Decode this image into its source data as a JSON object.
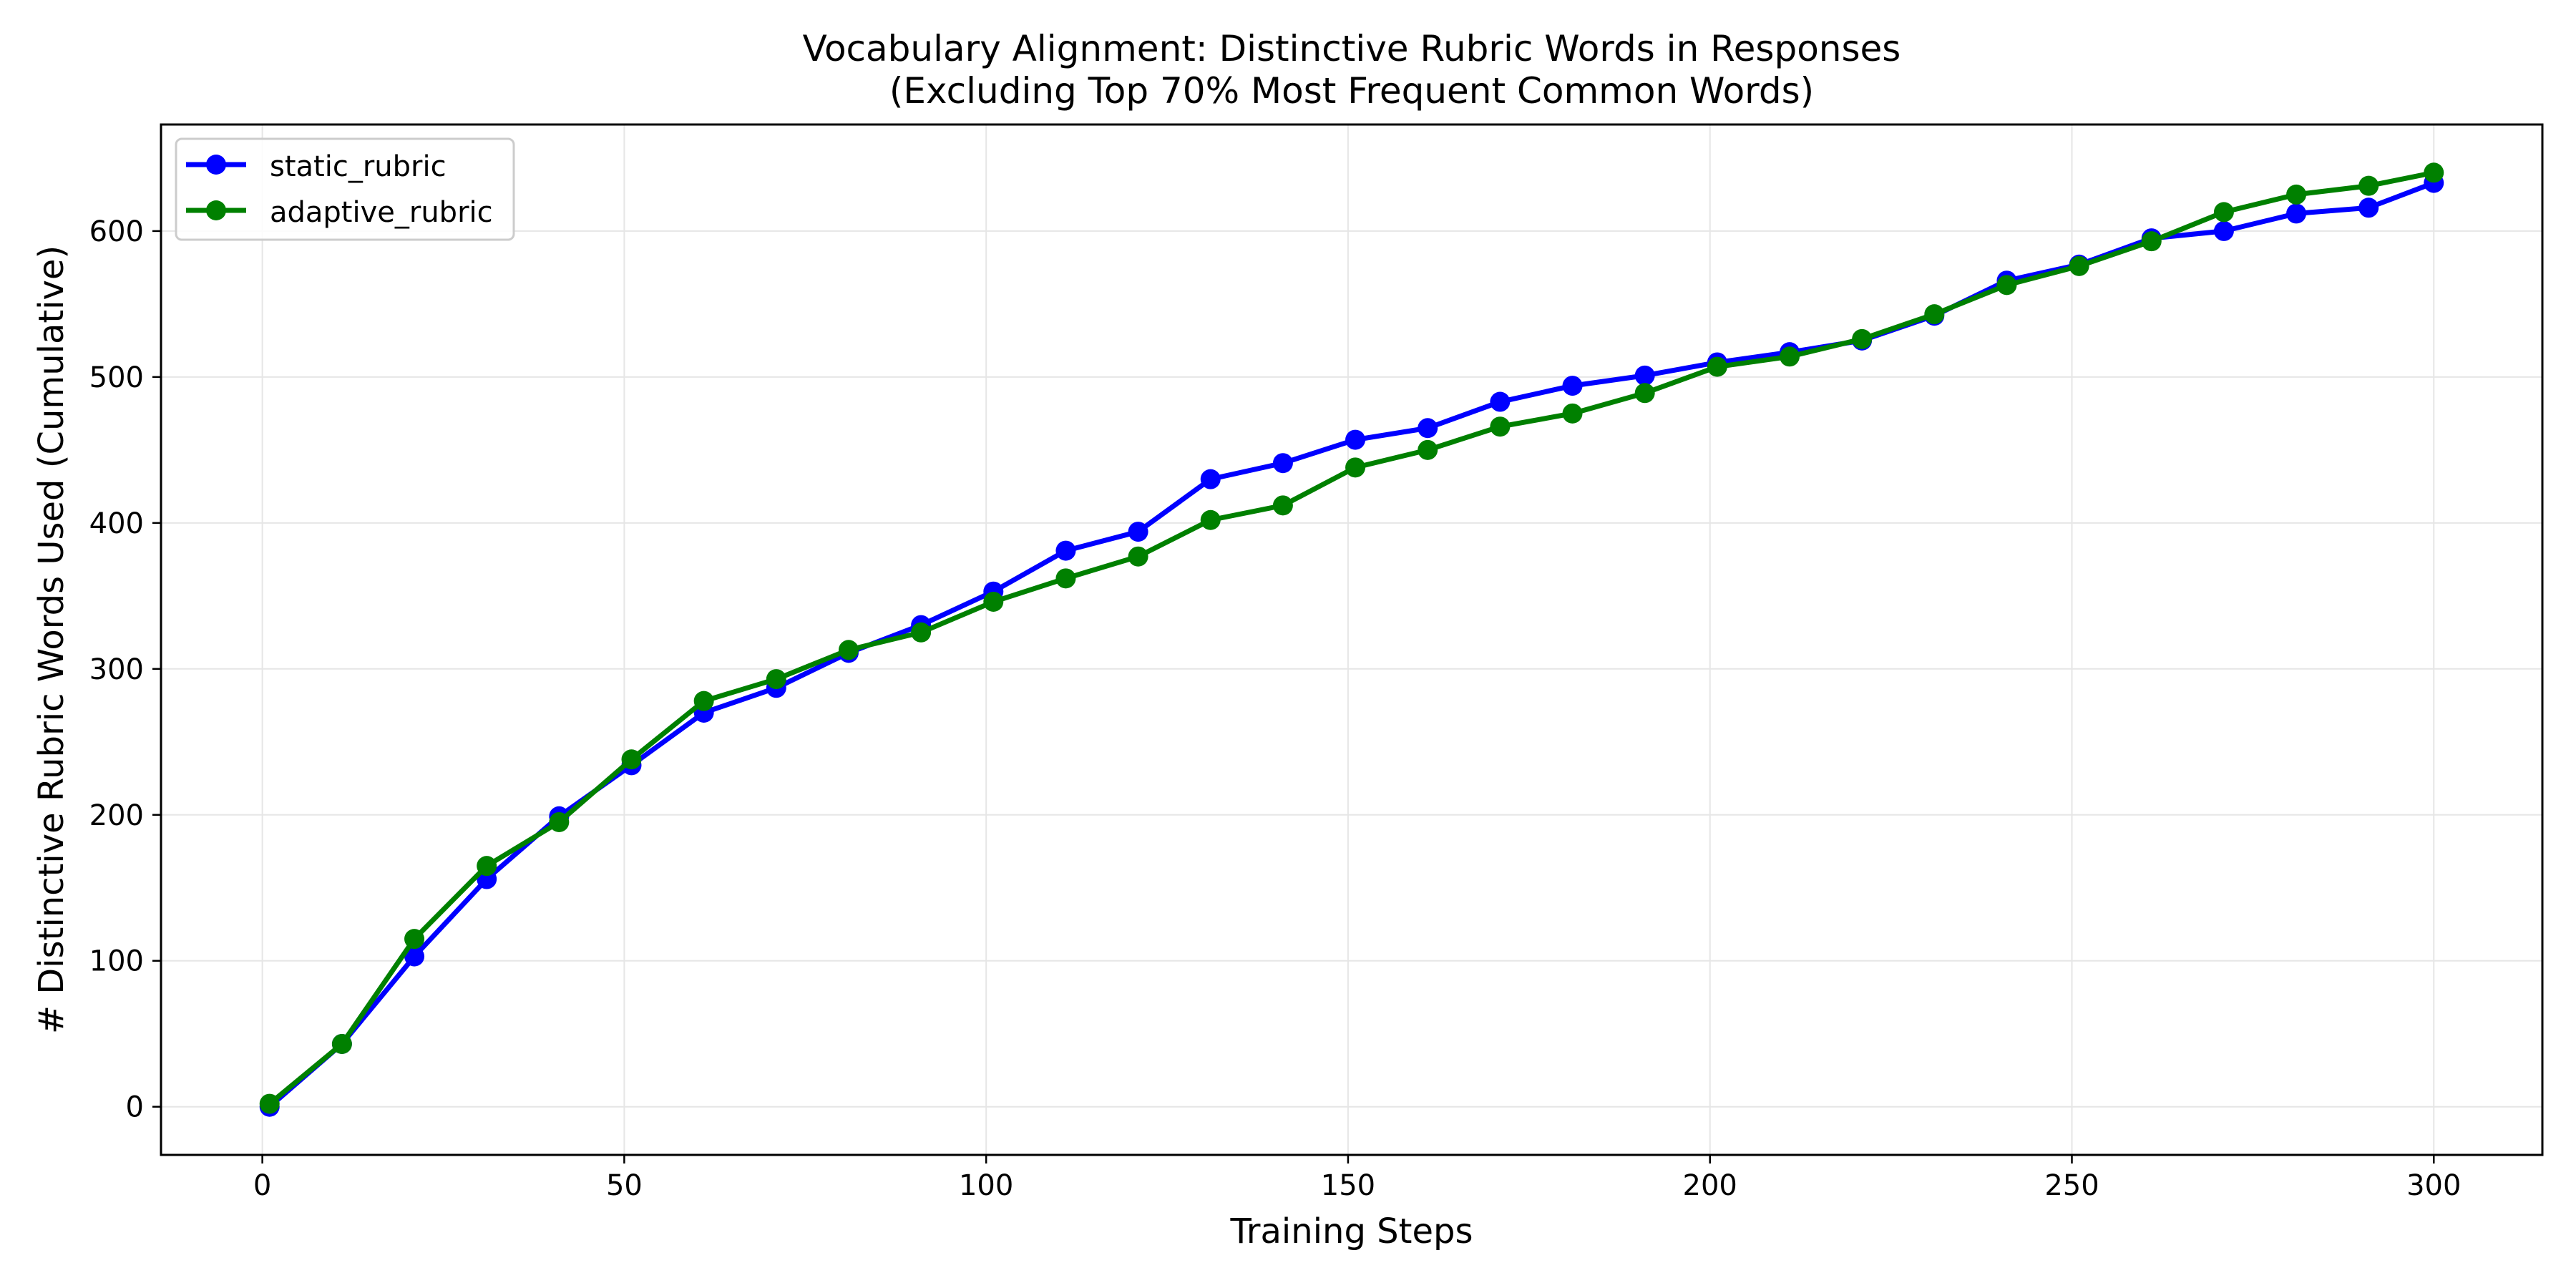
{
  "chart_data": {
    "type": "line",
    "title": "Vocabulary Alignment: Distinctive Rubric Words in Responses",
    "subtitle": "(Excluding Top 70% Most Frequent Common Words)",
    "xlabel": "Training Steps",
    "ylabel": "# Distinctive Rubric Words Used (Cumulative)",
    "xlim": [
      -14,
      315
    ],
    "ylim": [
      -33,
      673
    ],
    "x_ticks": [
      0,
      50,
      100,
      150,
      200,
      250,
      300
    ],
    "y_ticks": [
      0,
      100,
      200,
      300,
      400,
      500,
      600
    ],
    "grid": true,
    "legend_position": "top-left",
    "x": [
      1,
      11,
      21,
      31,
      41,
      51,
      61,
      71,
      81,
      91,
      101,
      111,
      121,
      131,
      141,
      151,
      161,
      171,
      181,
      191,
      201,
      211,
      221,
      231,
      241,
      251,
      261,
      271,
      281,
      291,
      300
    ],
    "series": [
      {
        "name": "static_rubric",
        "color": "#0000ff",
        "values": [
          0,
          43,
          103,
          156,
          199,
          234,
          270,
          287,
          311,
          330,
          353,
          381,
          394,
          430,
          441,
          457,
          465,
          483,
          494,
          501,
          510,
          517,
          525,
          542,
          566,
          577,
          595,
          600,
          612,
          616,
          633
        ]
      },
      {
        "name": "adaptive_rubric",
        "color": "#008000",
        "values": [
          2,
          43,
          115,
          165,
          195,
          238,
          278,
          293,
          313,
          325,
          346,
          362,
          377,
          402,
          412,
          438,
          450,
          466,
          475,
          489,
          507,
          514,
          526,
          543,
          563,
          576,
          593,
          613,
          625,
          631,
          640
        ]
      }
    ]
  }
}
